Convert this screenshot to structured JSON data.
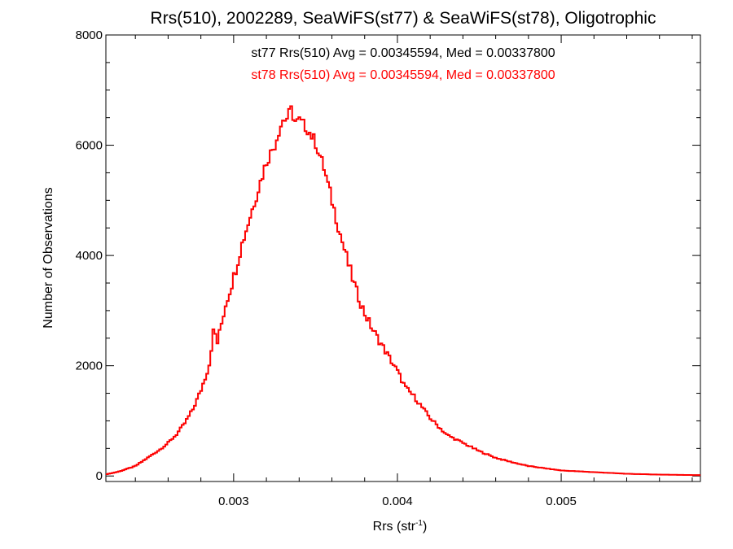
{
  "chart_data": {
    "type": "histogram-step",
    "title": "Rrs(510), 2002289, SeaWiFS(st77) & SeaWiFS(st78), Oligotrophic",
    "xlabel": "Rrs (str",
    "xlabel_superscript": "-1",
    "xlabel_close": ")",
    "ylabel": "Number of Observations",
    "xlim": [
      0.00222,
      0.00585
    ],
    "ylim": [
      -100,
      8000
    ],
    "xticks": [
      0.003,
      0.004,
      0.005
    ],
    "xtick_labels": [
      "0.003",
      "0.004",
      "0.005"
    ],
    "yticks": [
      0,
      2000,
      4000,
      6000,
      8000
    ],
    "ytick_labels": [
      "0",
      "2000",
      "4000",
      "6000",
      "8000"
    ],
    "bin_width": 1.25e-05,
    "grid": false,
    "annotations": [
      {
        "text": "st77 Rrs(510) Avg = 0.00345594, Med = 0.00337800",
        "color": "#000000"
      },
      {
        "text": "st78 Rrs(510) Avg = 0.00345594, Med = 0.00337800",
        "color": "#ff0000"
      }
    ],
    "series": [
      {
        "name": "st77",
        "color": "#000000",
        "x": [
          0.00222,
          0.0023,
          0.0024,
          0.0025,
          0.00255,
          0.0026,
          0.00265,
          0.0027,
          0.00275,
          0.0028,
          0.00285,
          0.00288,
          0.0029,
          0.00295,
          0.003,
          0.00305,
          0.0031,
          0.00315,
          0.0032,
          0.00325,
          0.00328,
          0.0033,
          0.00333,
          0.00335,
          0.00338,
          0.0034,
          0.00345,
          0.0035,
          0.00355,
          0.0036,
          0.00365,
          0.0037,
          0.00375,
          0.0038,
          0.00385,
          0.0039,
          0.00395,
          0.004,
          0.00405,
          0.0041,
          0.00415,
          0.0042,
          0.00425,
          0.0043,
          0.0044,
          0.0045,
          0.0046,
          0.0047,
          0.0048,
          0.0049,
          0.005,
          0.0052,
          0.0054,
          0.0056,
          0.00585
        ],
        "y": [
          30,
          80,
          180,
          380,
          480,
          600,
          750,
          950,
          1200,
          1550,
          2000,
          2700,
          2400,
          3100,
          3600,
          4200,
          4700,
          5200,
          5700,
          6000,
          6300,
          6450,
          6500,
          6650,
          6400,
          6450,
          6300,
          6050,
          5600,
          5000,
          4400,
          3850,
          3350,
          2950,
          2650,
          2400,
          2150,
          1900,
          1600,
          1450,
          1250,
          1050,
          900,
          750,
          600,
          450,
          330,
          250,
          180,
          140,
          100,
          70,
          40,
          25,
          15
        ]
      },
      {
        "name": "st78",
        "color": "#ff0000",
        "x": [
          0.00222,
          0.0023,
          0.0024,
          0.0025,
          0.00255,
          0.0026,
          0.00265,
          0.0027,
          0.00275,
          0.0028,
          0.00285,
          0.00288,
          0.0029,
          0.00295,
          0.003,
          0.00305,
          0.0031,
          0.00315,
          0.0032,
          0.00325,
          0.00328,
          0.0033,
          0.00333,
          0.00335,
          0.00338,
          0.0034,
          0.00345,
          0.0035,
          0.00355,
          0.0036,
          0.00365,
          0.0037,
          0.00375,
          0.0038,
          0.00385,
          0.0039,
          0.00395,
          0.004,
          0.00405,
          0.0041,
          0.00415,
          0.0042,
          0.00425,
          0.0043,
          0.0044,
          0.0045,
          0.0046,
          0.0047,
          0.0048,
          0.0049,
          0.005,
          0.0052,
          0.0054,
          0.0056,
          0.00585
        ],
        "y": [
          30,
          80,
          180,
          380,
          480,
          600,
          750,
          950,
          1200,
          1550,
          2000,
          2700,
          2400,
          3100,
          3600,
          4200,
          4700,
          5200,
          5700,
          6000,
          6300,
          6450,
          6500,
          6650,
          6400,
          6450,
          6300,
          6050,
          5600,
          5000,
          4400,
          3850,
          3350,
          2950,
          2650,
          2400,
          2150,
          1900,
          1600,
          1450,
          1250,
          1050,
          900,
          750,
          600,
          450,
          330,
          250,
          180,
          140,
          100,
          70,
          40,
          25,
          15
        ]
      }
    ]
  }
}
